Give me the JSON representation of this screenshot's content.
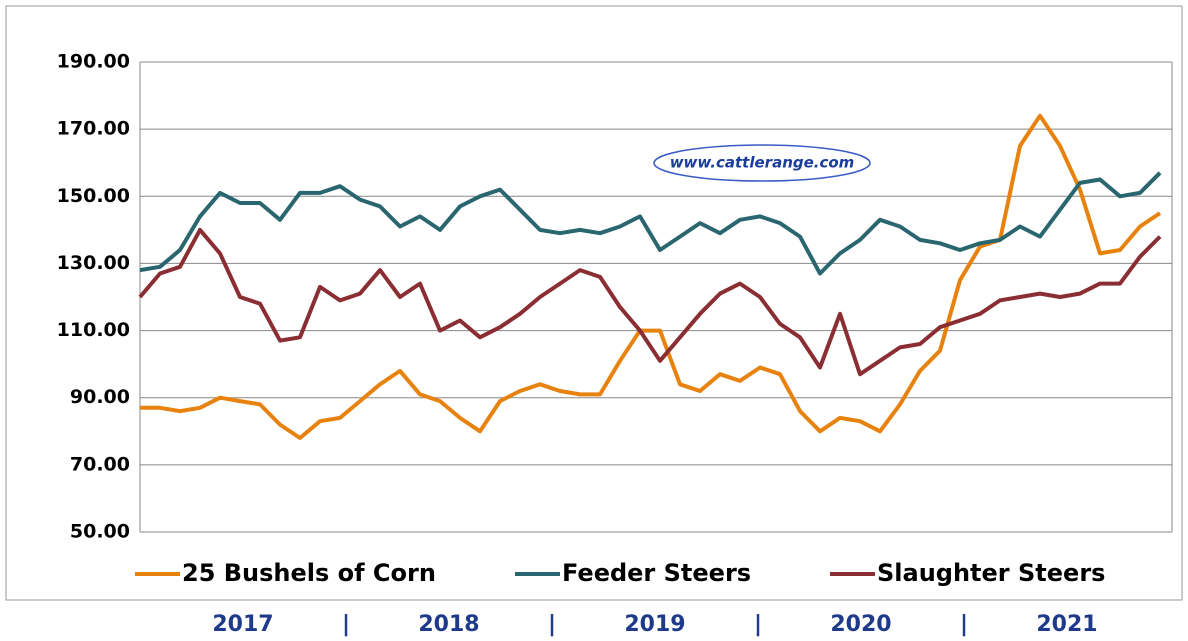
{
  "chart_data": {
    "type": "line",
    "watermark": "www.cattlerange.com",
    "x_labels": [
      "2017",
      "2018",
      "2019",
      "2020",
      "2021"
    ],
    "separator": "|",
    "ylim": [
      50,
      190
    ],
    "yticks": [
      {
        "value": 50,
        "label": "50.00"
      },
      {
        "value": 70,
        "label": "70.00"
      },
      {
        "value": 90,
        "label": "90.00"
      },
      {
        "value": 110,
        "label": "110.00"
      },
      {
        "value": 130,
        "label": "130.00"
      },
      {
        "value": 150,
        "label": "150.00"
      },
      {
        "value": 170,
        "label": "170.00"
      },
      {
        "value": 190,
        "label": "190.00"
      }
    ],
    "grid": true,
    "legend": "bottom",
    "series": [
      {
        "name": "25 Bushels of Corn",
        "color": "#e8820e",
        "values": [
          87,
          87,
          86,
          87,
          90,
          89,
          88,
          82,
          78,
          83,
          84,
          89,
          94,
          98,
          91,
          89,
          84,
          80,
          89,
          92,
          94,
          92,
          91,
          91,
          101,
          110,
          110,
          94,
          92,
          97,
          95,
          99,
          97,
          86,
          80,
          84,
          83,
          80,
          88,
          98,
          104,
          125,
          135,
          137,
          165,
          174,
          165,
          152,
          133,
          134,
          141,
          145
        ]
      },
      {
        "name": "Feeder Steers",
        "color": "#2a6670",
        "values": [
          128,
          129,
          134,
          144,
          151,
          148,
          148,
          143,
          151,
          151,
          153,
          149,
          147,
          141,
          144,
          140,
          147,
          150,
          152,
          146,
          140,
          139,
          140,
          139,
          141,
          144,
          134,
          138,
          142,
          139,
          143,
          144,
          142,
          138,
          127,
          133,
          137,
          143,
          141,
          137,
          136,
          134,
          136,
          137,
          141,
          138,
          146,
          154,
          155,
          150,
          151,
          157
        ]
      },
      {
        "name": "Slaughter Steers",
        "color": "#8b2e33",
        "values": [
          120,
          127,
          129,
          140,
          133,
          120,
          118,
          107,
          108,
          123,
          119,
          121,
          128,
          120,
          124,
          110,
          113,
          108,
          111,
          115,
          120,
          124,
          128,
          126,
          117,
          110,
          101,
          108,
          115,
          121,
          124,
          120,
          112,
          108,
          99,
          115,
          97,
          101,
          105,
          106,
          111,
          113,
          115,
          119,
          120,
          121,
          120,
          121,
          124,
          124,
          132,
          138
        ]
      }
    ]
  }
}
